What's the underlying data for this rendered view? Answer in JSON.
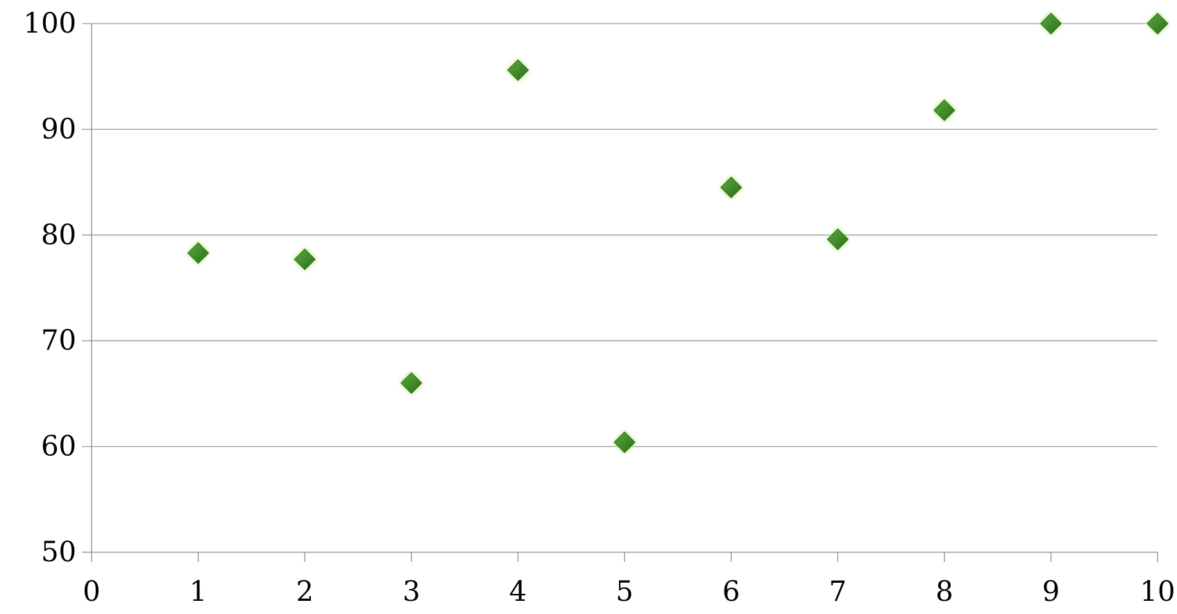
{
  "chart_data": {
    "type": "scatter",
    "title": "",
    "xlabel": "",
    "ylabel": "",
    "xlim": [
      0,
      10
    ],
    "ylim": [
      50,
      100
    ],
    "x_ticks": [
      0,
      1,
      2,
      3,
      4,
      5,
      6,
      7,
      8,
      9,
      10
    ],
    "y_ticks": [
      50,
      60,
      70,
      80,
      90,
      100
    ],
    "grid": "horizontal",
    "legend": "none",
    "marker": "diamond",
    "colors": {
      "marker_fill": "#3f8a2a",
      "marker_glow": "#c8f0a0",
      "grid": "#9a9a9a",
      "axis": "#8c8c8c"
    },
    "series": [
      {
        "x": [
          1,
          2,
          3,
          4,
          5,
          6,
          7,
          8,
          9,
          10
        ],
        "y": [
          78.3,
          77.7,
          66.0,
          95.6,
          60.4,
          84.5,
          79.6,
          91.8,
          100.0,
          100.0
        ]
      }
    ]
  }
}
